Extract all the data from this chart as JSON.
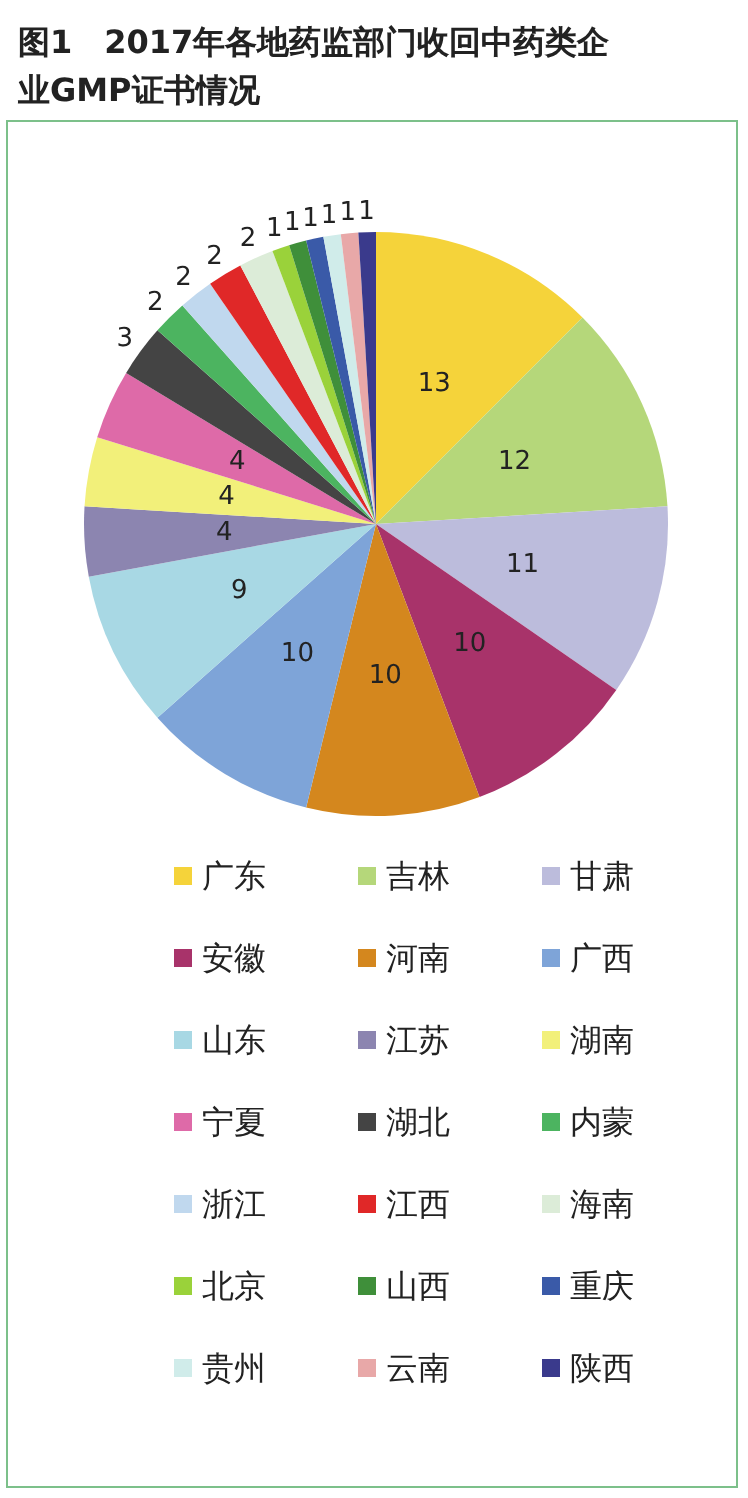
{
  "chart_data": {
    "type": "pie",
    "title": "图1　2017年各地药监部门收回中药类企业GMP证书情况",
    "categories": [
      "广东",
      "吉林",
      "甘肃",
      "安徽",
      "河南",
      "广西",
      "山东",
      "江苏",
      "湖南",
      "宁夏",
      "湖北",
      "内蒙",
      "浙江",
      "江西",
      "海南",
      "北京",
      "山西",
      "重庆",
      "贵州",
      "云南",
      "陕西"
    ],
    "values": [
      13,
      12,
      11,
      10,
      10,
      10,
      9,
      4,
      4,
      4,
      3,
      2,
      2,
      2,
      2,
      1,
      1,
      1,
      1,
      1,
      1
    ],
    "colors": [
      "#f5d33a",
      "#b5d77a",
      "#bcbcdc",
      "#a8336a",
      "#d4871e",
      "#7ea4d8",
      "#a8d8e4",
      "#8c85b0",
      "#f2f07a",
      "#de6aa8",
      "#444444",
      "#4cb460",
      "#c0d8ee",
      "#e02828",
      "#dcecd8",
      "#9ad23a",
      "#3f8f3a",
      "#3a5aa8",
      "#d0ecea",
      "#e8a8a8",
      "#3a3a8c"
    ],
    "data_labels": true,
    "legend": "bottom"
  }
}
